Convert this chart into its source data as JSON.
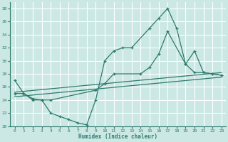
{
  "xlabel": "Humidex (Indice chaleur)",
  "xlim": [
    -0.5,
    23.5
  ],
  "ylim": [
    20,
    39
  ],
  "yticks": [
    20,
    22,
    24,
    26,
    28,
    30,
    32,
    34,
    36,
    38
  ],
  "xticks": [
    0,
    1,
    2,
    3,
    4,
    5,
    6,
    7,
    8,
    9,
    10,
    11,
    12,
    13,
    14,
    15,
    16,
    17,
    18,
    19,
    20,
    21,
    22,
    23
  ],
  "bg_color": "#cce8e4",
  "line_color": "#2d7a6e",
  "grid_color": "#b0d8d2",
  "line1_x": [
    0,
    1,
    2,
    3,
    4,
    5,
    6,
    7,
    8,
    9,
    10,
    11,
    12,
    13,
    15,
    16,
    17,
    18,
    19,
    20,
    21,
    22,
    23
  ],
  "line1_y": [
    27,
    25,
    24,
    24,
    22,
    21.5,
    21,
    20.5,
    20.2,
    24,
    30,
    31.5,
    32,
    32,
    35,
    36.5,
    38,
    35,
    29.5,
    28.2,
    28.2,
    28,
    27.8
  ],
  "line2_x": [
    0,
    1,
    2,
    3,
    4,
    9,
    10,
    11,
    14,
    15,
    16,
    17,
    19,
    20,
    21,
    22,
    23
  ],
  "line2_y": [
    25,
    25,
    24.2,
    24,
    24,
    25.5,
    26.5,
    28,
    28,
    29,
    31,
    34.5,
    29.5,
    31.5,
    28.2,
    28,
    27.8
  ],
  "line3_x": [
    0,
    23
  ],
  "line3_y": [
    25.2,
    28.2
  ],
  "line4_x": [
    0,
    23
  ],
  "line4_y": [
    24.5,
    27.5
  ]
}
